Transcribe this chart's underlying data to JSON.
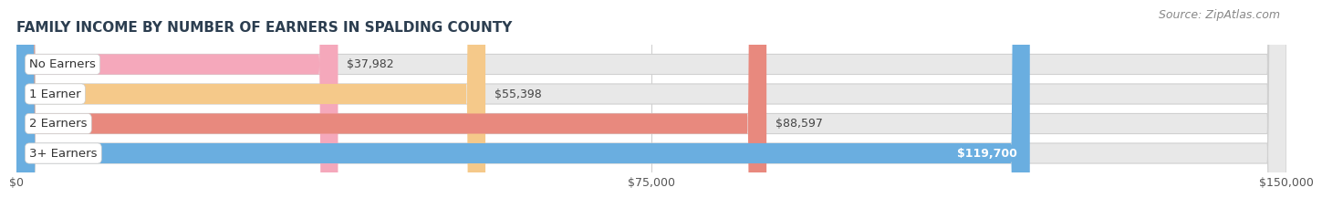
{
  "title": "FAMILY INCOME BY NUMBER OF EARNERS IN SPALDING COUNTY",
  "source": "Source: ZipAtlas.com",
  "categories": [
    "No Earners",
    "1 Earner",
    "2 Earners",
    "3+ Earners"
  ],
  "values": [
    37982,
    55398,
    88597,
    119700
  ],
  "bar_colors": [
    "#f5a8bb",
    "#f5c98a",
    "#e8897e",
    "#6aaee0"
  ],
  "value_labels": [
    "$37,982",
    "$55,398",
    "$88,597",
    "$119,700"
  ],
  "xlim": [
    0,
    150000
  ],
  "xticks": [
    0,
    75000,
    150000
  ],
  "xtick_labels": [
    "$0",
    "$75,000",
    "$150,000"
  ],
  "bg_color": "#ffffff",
  "bar_bg_color": "#e8e8e8",
  "bar_outline_color": "#d0d0d0",
  "title_fontsize": 11,
  "source_fontsize": 9,
  "label_fontsize": 9.5,
  "value_fontsize": 9,
  "tick_fontsize": 9,
  "bar_height": 0.68,
  "bar_gap": 0.32
}
